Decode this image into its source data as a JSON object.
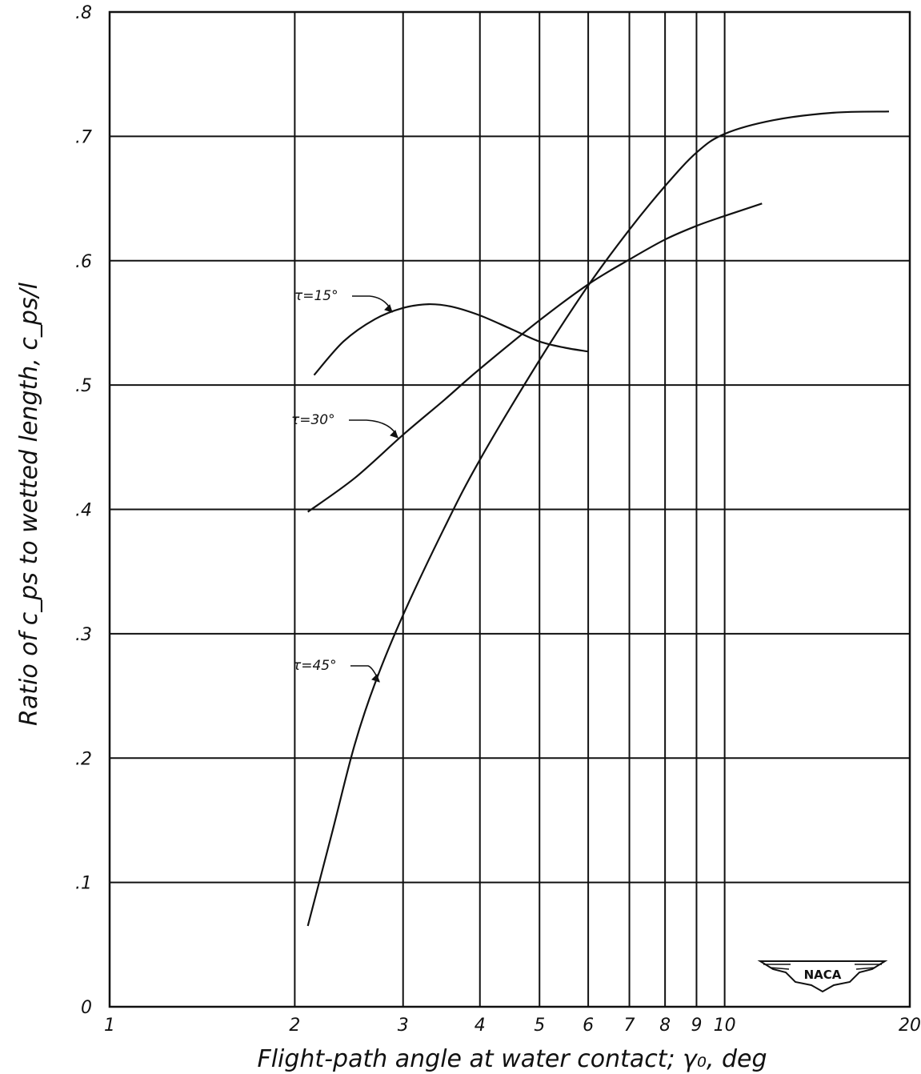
{
  "chart_data": {
    "type": "line",
    "title": "",
    "xlabel": "Flight-path angle at water contact; γ₀, deg",
    "ylabel": "Ratio of c_ps to wetted length, c_ps/l",
    "x_scale": "log",
    "xlim": [
      1,
      20
    ],
    "ylim": [
      0,
      0.8
    ],
    "grid": true,
    "x_ticks": [
      {
        "value": 1,
        "label": "1"
      },
      {
        "value": 2,
        "label": "2"
      },
      {
        "value": 3,
        "label": "3"
      },
      {
        "value": 4,
        "label": "4"
      },
      {
        "value": 5,
        "label": "5"
      },
      {
        "value": 6,
        "label": "6"
      },
      {
        "value": 7,
        "label": "7"
      },
      {
        "value": 8,
        "label": "8"
      },
      {
        "value": 9,
        "label": "9"
      },
      {
        "value": 10,
        "label": "10"
      },
      {
        "value": 20,
        "label": "20"
      }
    ],
    "y_ticks": [
      {
        "value": 0,
        "label": "0"
      },
      {
        "value": 0.1,
        "label": ".1"
      },
      {
        "value": 0.2,
        "label": ".2"
      },
      {
        "value": 0.3,
        "label": ".3"
      },
      {
        "value": 0.4,
        "label": ".4"
      },
      {
        "value": 0.5,
        "label": ".5"
      },
      {
        "value": 0.6,
        "label": ".6"
      },
      {
        "value": 0.7,
        "label": ".7"
      },
      {
        "value": 0.8,
        "label": ".8"
      }
    ],
    "series": [
      {
        "name": "τ=15°",
        "x": [
          2.15,
          2.4,
          2.7,
          3.0,
          3.3,
          3.6,
          4.0,
          4.5,
          5.0,
          5.5,
          6.0
        ],
        "y": [
          0.508,
          0.535,
          0.553,
          0.562,
          0.565,
          0.563,
          0.556,
          0.545,
          0.535,
          0.53,
          0.527
        ]
      },
      {
        "name": "τ=30°",
        "x": [
          2.1,
          2.5,
          3.0,
          3.5,
          4.0,
          5.0,
          6.0,
          7.0,
          8.0,
          9.0,
          10.0,
          11.5
        ],
        "y": [
          0.398,
          0.425,
          0.46,
          0.488,
          0.513,
          0.552,
          0.581,
          0.601,
          0.617,
          0.628,
          0.636,
          0.646
        ]
      },
      {
        "name": "τ=45°",
        "x": [
          2.1,
          2.3,
          2.5,
          2.7,
          3.0,
          3.5,
          4.0,
          5.0,
          6.0,
          7.0,
          8.0,
          9.0,
          10.0,
          12.0,
          15.0,
          18.5
        ],
        "y": [
          0.065,
          0.14,
          0.21,
          0.26,
          0.315,
          0.385,
          0.44,
          0.52,
          0.58,
          0.625,
          0.66,
          0.687,
          0.702,
          0.713,
          0.719,
          0.72
        ]
      }
    ],
    "annotations": [
      "τ=15°",
      "τ=30°",
      "τ=45°"
    ]
  },
  "logo": {
    "text": "NACA"
  }
}
